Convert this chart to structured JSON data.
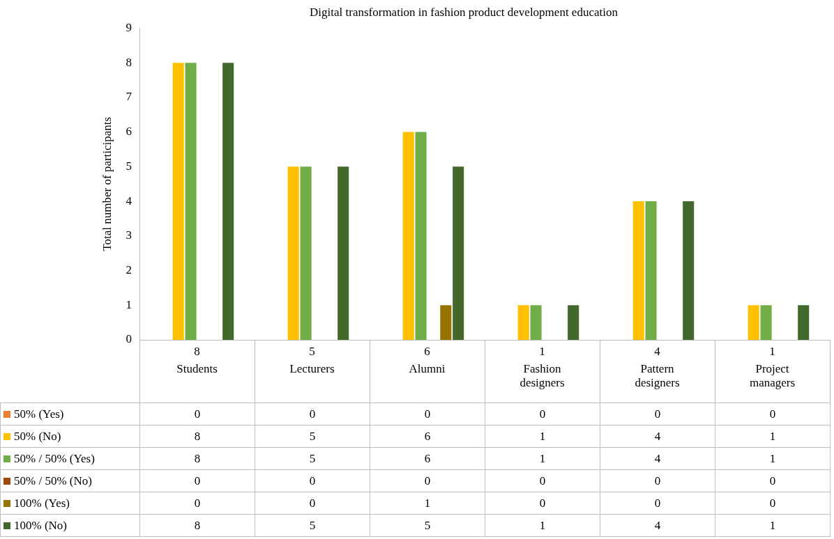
{
  "chart_data": {
    "type": "bar",
    "title": "Digital transformation in fashion product development education",
    "ylabel": "Total number of participants",
    "categories": [
      "Students",
      "Lecturers",
      "Alumni",
      "Fashion designers",
      "Pattern designers",
      "Project managers"
    ],
    "series": [
      {
        "name": "50% (Yes)",
        "color": "#ed7d31",
        "values": [
          0,
          0,
          0,
          0,
          0,
          0
        ]
      },
      {
        "name": "50% (No)",
        "color": "#ffc000",
        "values": [
          8,
          5,
          6,
          1,
          4,
          1
        ],
        "value_labels": [
          "8",
          "5",
          "6",
          "1",
          "4",
          "1"
        ]
      },
      {
        "name": "50% / 50% (Yes)",
        "color": "#70ad47",
        "values": [
          8,
          5,
          6,
          1,
          4,
          1
        ]
      },
      {
        "name": "50% / 50% (No)",
        "color": "#9e480e",
        "values": [
          0,
          0,
          0,
          0,
          0,
          0
        ]
      },
      {
        "name": "100% (Yes)",
        "color": "#997300",
        "values": [
          0,
          0,
          1,
          0,
          0,
          0
        ]
      },
      {
        "name": "100% (No)",
        "color": "#43682b",
        "values": [
          8,
          5,
          5,
          1,
          4,
          1
        ]
      }
    ],
    "annotations": [
      "8",
      "5",
      "6",
      "1",
      "4",
      "1"
    ],
    "ylim": [
      0,
      9
    ],
    "yticks": [
      0,
      1,
      2,
      3,
      4,
      5,
      6,
      7,
      8,
      9
    ],
    "data_labels": true,
    "legend": "bottom"
  }
}
